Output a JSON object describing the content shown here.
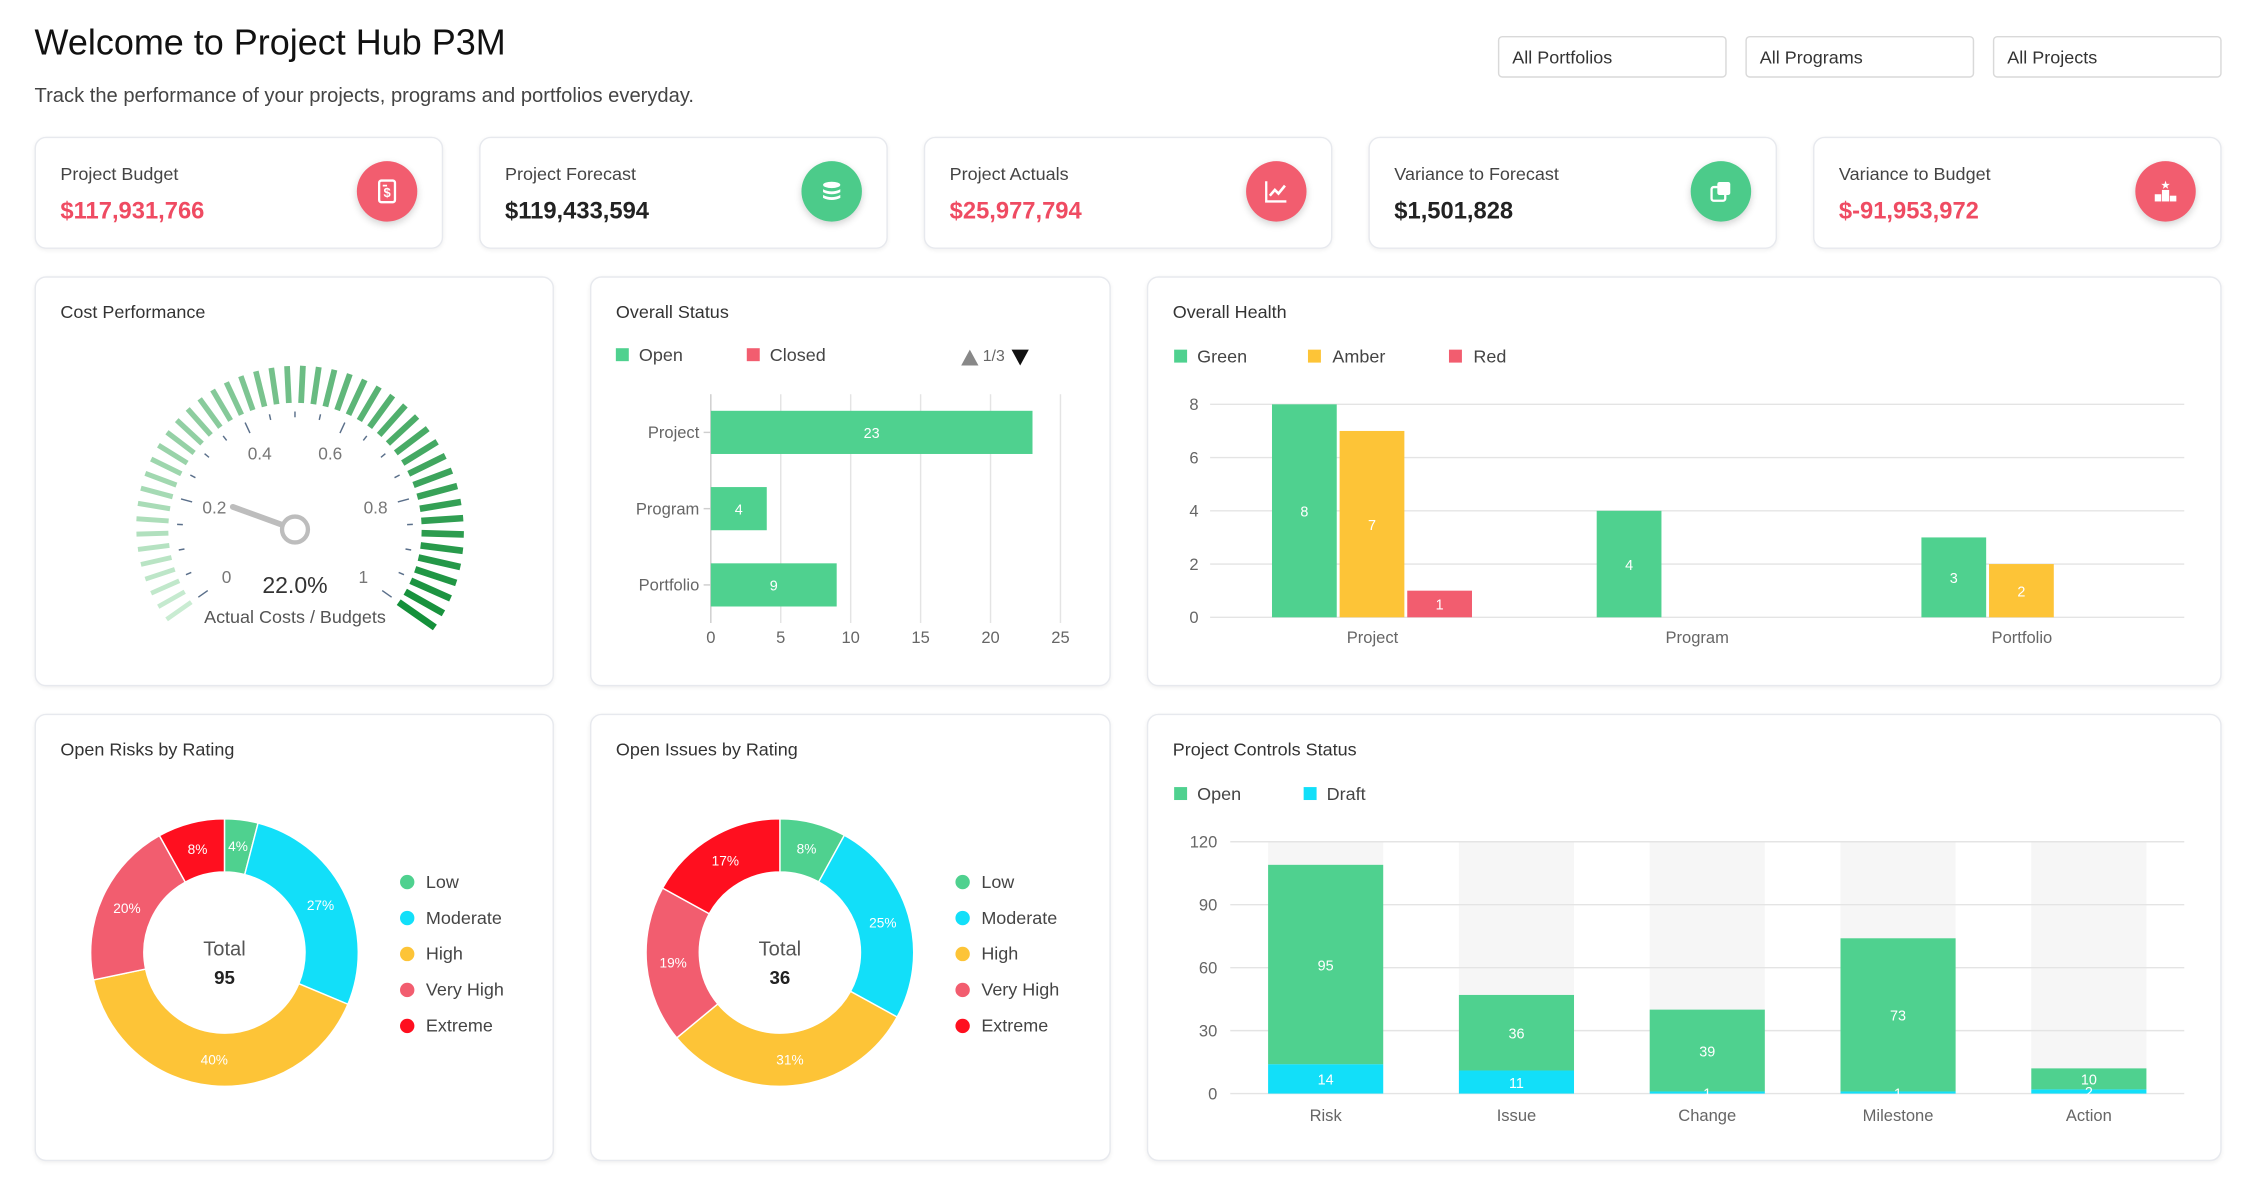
{
  "header": {
    "title": "Welcome to Project Hub P3M",
    "subtitle": "Track the performance of your projects, programs and portfolios everyday."
  },
  "filters": [
    "All Portfolios",
    "All Programs",
    "All Projects"
  ],
  "kpis": [
    {
      "label": "Project Budget",
      "value": "$117,931,766",
      "value_color": "#ef4b62",
      "icon": "budget-document-icon",
      "icon_bg": "#f25d6f"
    },
    {
      "label": "Project Forecast",
      "value": "$119,433,594",
      "value_color": "#222222",
      "icon": "coins-stack-icon",
      "icon_bg": "#4ccb8a"
    },
    {
      "label": "Project Actuals",
      "value": "$25,977,794",
      "value_color": "#ef4b62",
      "icon": "trend-chart-icon",
      "icon_bg": "#f25d6f"
    },
    {
      "label": "Variance to Forecast",
      "value": "$1,501,828",
      "value_color": "#222222",
      "icon": "copy-squares-icon",
      "icon_bg": "#4ccb8a"
    },
    {
      "label": "Variance to Budget",
      "value": "$-91,953,972",
      "value_color": "#ef4b62",
      "icon": "podium-star-icon",
      "icon_bg": "#f25d6f"
    }
  ],
  "cost_performance": {
    "title": "Cost Performance",
    "value_label": "22.0%",
    "caption": "Actual Costs / Budgets",
    "value": 0.22,
    "ticks": [
      "0",
      "0.2",
      "0.4",
      "0.6",
      "0.8",
      "1"
    ]
  },
  "overall_status": {
    "title": "Overall Status",
    "legend": [
      {
        "name": "Open",
        "color": "#4fd18f"
      },
      {
        "name": "Closed",
        "color": "#f25d6f"
      }
    ],
    "pager": "1/3"
  },
  "overall_health": {
    "title": "Overall Health",
    "legend": [
      {
        "name": "Green",
        "color": "#4fd18f"
      },
      {
        "name": "Amber",
        "color": "#fdc437"
      },
      {
        "name": "Red",
        "color": "#f25d6f"
      }
    ]
  },
  "open_risks": {
    "title": "Open Risks by Rating",
    "center_label": "Total",
    "center_value": "95",
    "legend": [
      {
        "name": "Low",
        "color": "#4fd18f"
      },
      {
        "name": "Moderate",
        "color": "#12dff9"
      },
      {
        "name": "High",
        "color": "#fdc437"
      },
      {
        "name": "Very High",
        "color": "#f25d6f"
      },
      {
        "name": "Extreme",
        "color": "#ff0f1f"
      }
    ]
  },
  "open_issues": {
    "title": "Open Issues by Rating",
    "center_label": "Total",
    "center_value": "36",
    "legend": [
      {
        "name": "Low",
        "color": "#4fd18f"
      },
      {
        "name": "Moderate",
        "color": "#12dff9"
      },
      {
        "name": "High",
        "color": "#fdc437"
      },
      {
        "name": "Very High",
        "color": "#f25d6f"
      },
      {
        "name": "Extreme",
        "color": "#ff0f1f"
      }
    ]
  },
  "project_controls": {
    "title": "Project Controls Status",
    "legend": [
      {
        "name": "Open",
        "color": "#4fd18f"
      },
      {
        "name": "Draft",
        "color": "#12dff9"
      }
    ]
  },
  "chart_data": [
    {
      "id": "overall_status",
      "type": "bar",
      "orientation": "horizontal",
      "categories": [
        "Project",
        "Program",
        "Portfolio"
      ],
      "series": [
        {
          "name": "Open",
          "values": [
            23,
            4,
            9
          ]
        }
      ],
      "xlim": [
        0,
        25
      ],
      "xticks": [
        0,
        5,
        10,
        15,
        20,
        25
      ],
      "grid": true
    },
    {
      "id": "overall_health",
      "type": "bar",
      "categories": [
        "Project",
        "Program",
        "Portfolio"
      ],
      "series": [
        {
          "name": "Green",
          "values": [
            8,
            4,
            3
          ]
        },
        {
          "name": "Amber",
          "values": [
            7,
            0,
            2
          ]
        },
        {
          "name": "Red",
          "values": [
            1,
            0,
            0
          ]
        }
      ],
      "ylim": [
        0,
        8
      ],
      "yticks": [
        0,
        2,
        4,
        6,
        8
      ],
      "grid": true
    },
    {
      "id": "open_risks",
      "type": "pie",
      "categories": [
        "Low",
        "Moderate",
        "High",
        "Very High",
        "Extreme"
      ],
      "values": [
        4,
        27,
        40,
        20,
        8
      ],
      "labels": [
        "4%",
        "27%",
        "40%",
        "20%",
        "8%"
      ]
    },
    {
      "id": "open_issues",
      "type": "pie",
      "categories": [
        "Low",
        "Moderate",
        "High",
        "Very High",
        "Extreme"
      ],
      "values": [
        8,
        25,
        31,
        19,
        17
      ],
      "labels": [
        "8%",
        "25%",
        "31%",
        "19%",
        "17%"
      ]
    },
    {
      "id": "project_controls",
      "type": "bar",
      "stacked": true,
      "categories": [
        "Risk",
        "Issue",
        "Change",
        "Milestone",
        "Action"
      ],
      "series": [
        {
          "name": "Draft",
          "values": [
            14,
            11,
            1,
            1,
            2
          ]
        },
        {
          "name": "Open",
          "values": [
            95,
            36,
            39,
            73,
            10
          ]
        }
      ],
      "ylim": [
        0,
        120
      ],
      "yticks": [
        0,
        30,
        60,
        90,
        120
      ],
      "grid": true
    }
  ]
}
